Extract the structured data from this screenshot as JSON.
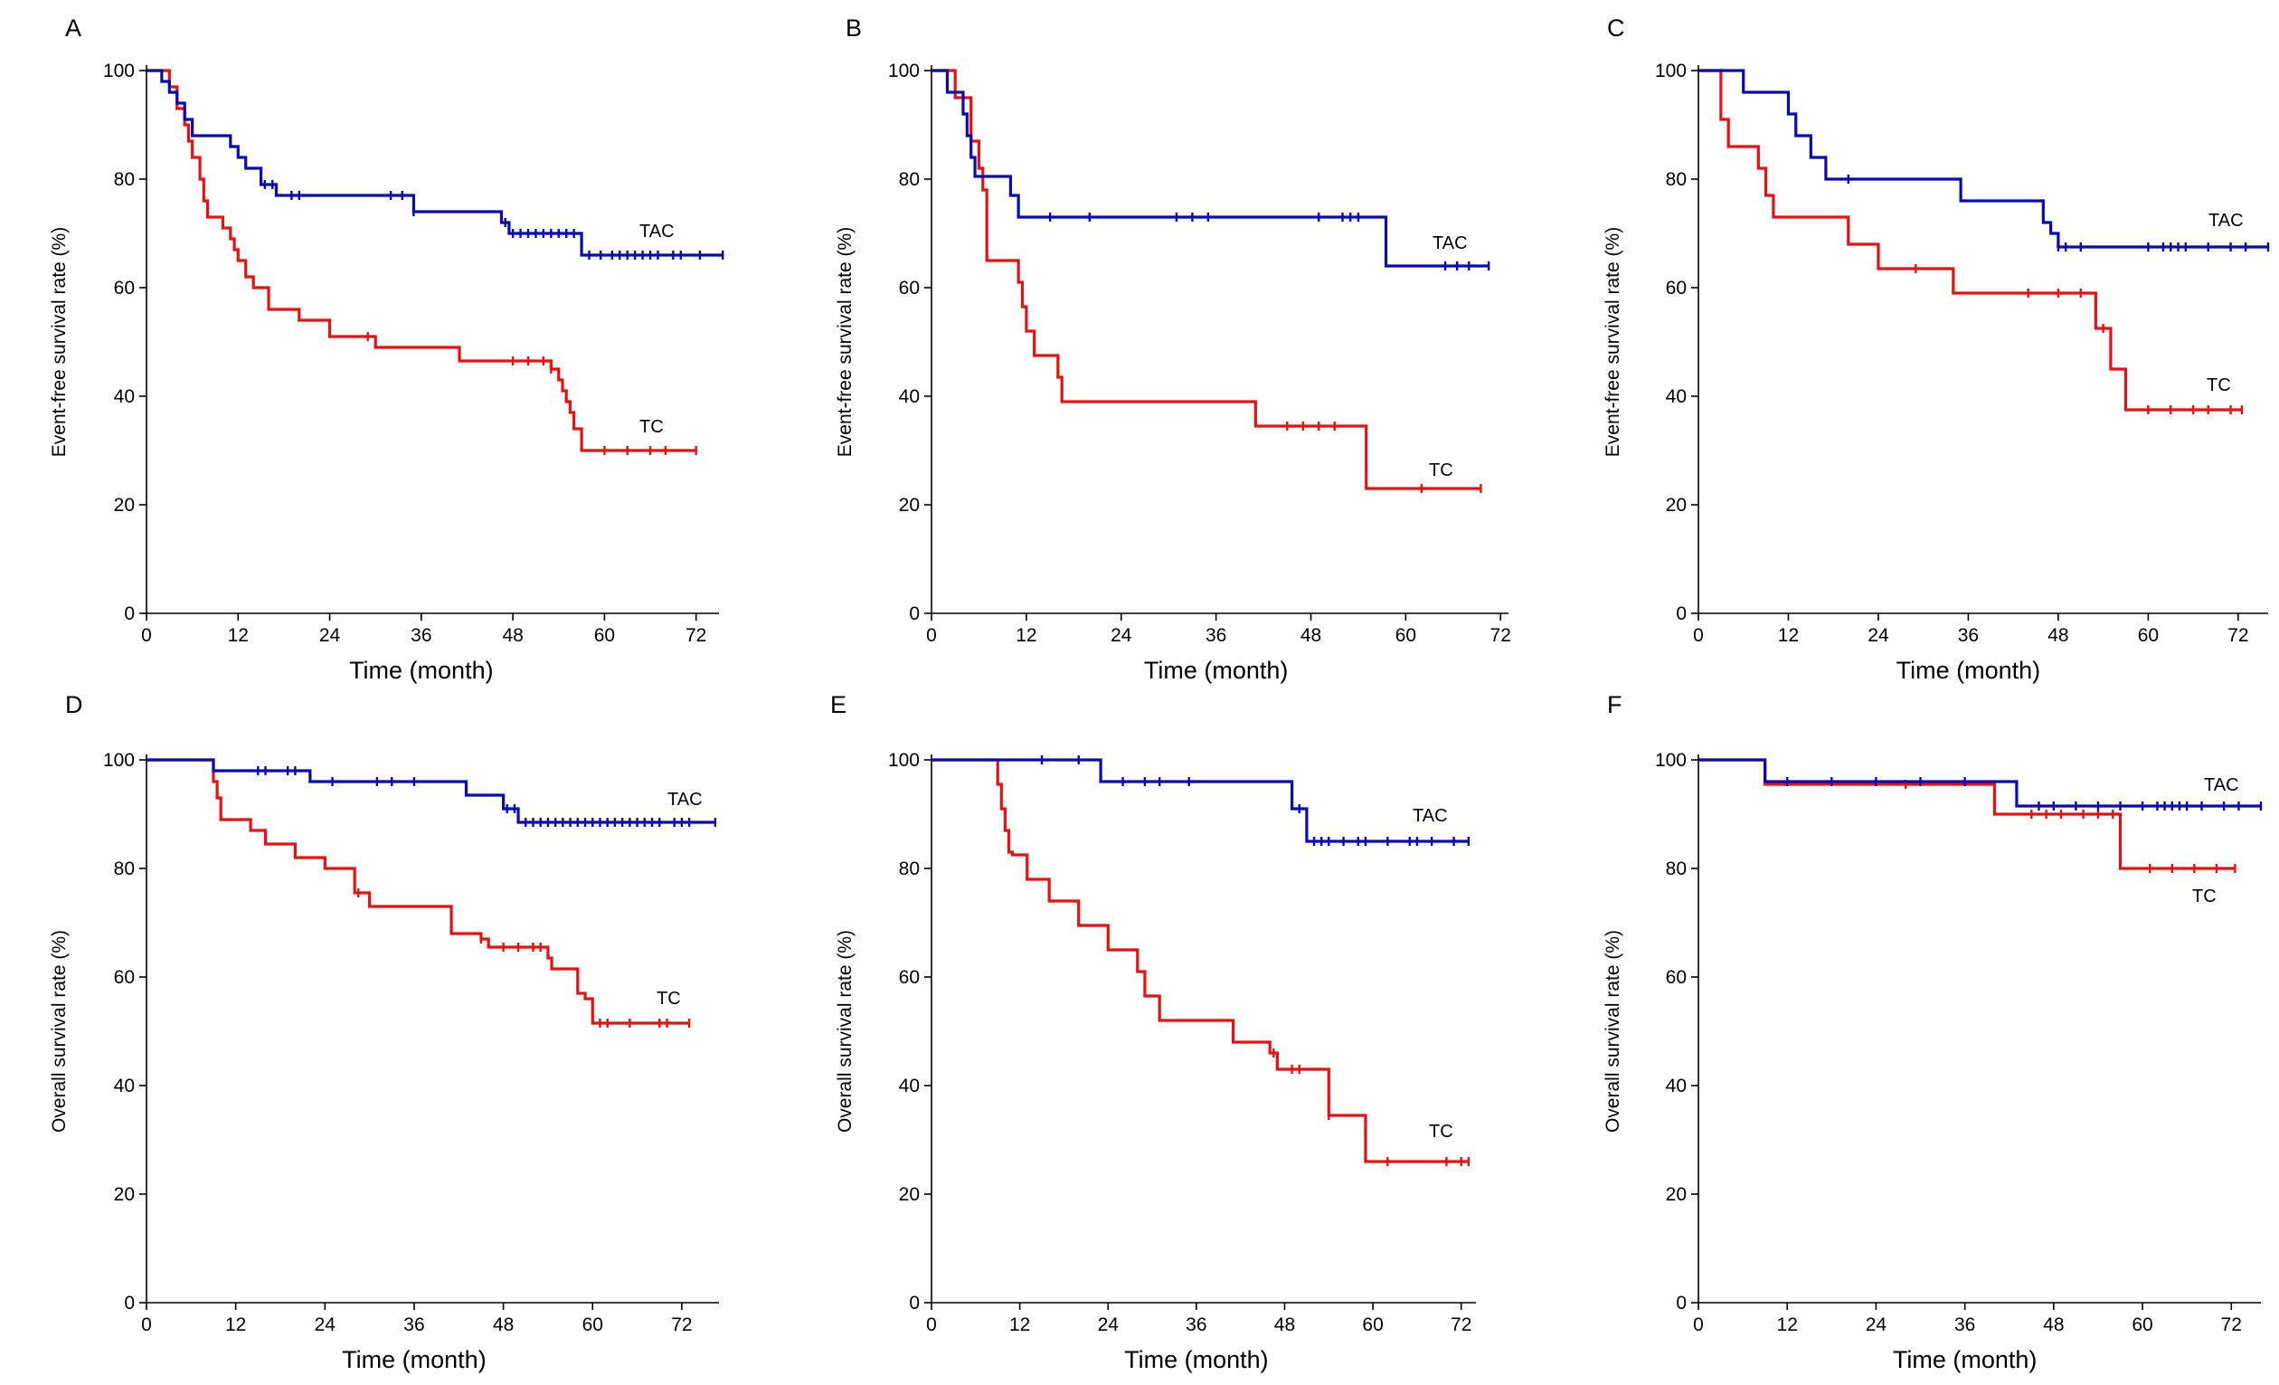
{
  "chart_data": [
    {
      "panel": "A",
      "type": "line",
      "ylabel": "Event-free survival rate (%)",
      "xlabel": "Time (month)",
      "xlim": [
        0,
        75
      ],
      "ylim": [
        0,
        100
      ],
      "xticks": [
        "0",
        "12",
        "24",
        "36",
        "48",
        "60",
        "72"
      ],
      "yticks": [
        "0",
        "20",
        "40",
        "60",
        "80",
        "100"
      ],
      "series": [
        {
          "name": "TAC",
          "color": "#0a0ab4",
          "x": [
            0,
            2,
            3,
            4,
            5,
            6,
            11,
            12,
            13,
            15,
            17,
            35,
            46.5,
            47.5,
            57,
            75.5
          ],
          "y": [
            100,
            98,
            96,
            94,
            91,
            88,
            86,
            84,
            82,
            79,
            77,
            74,
            72,
            70,
            66,
            66
          ],
          "censored_x": [
            15.5,
            16.5,
            19,
            20,
            32,
            33.5,
            35,
            47,
            48,
            49,
            50,
            51,
            52,
            53,
            54,
            55,
            56,
            58,
            59.5,
            61,
            62,
            63,
            64,
            65,
            66,
            67,
            69,
            70,
            72.5,
            75.5
          ]
        },
        {
          "name": "TC",
          "color": "#e81010",
          "x": [
            0,
            3,
            4,
            5,
            5.5,
            6,
            7,
            7.5,
            8,
            10,
            11,
            11.5,
            12,
            13,
            14,
            16,
            20,
            24,
            30,
            41,
            53,
            54,
            54.5,
            55,
            55.5,
            56,
            57,
            72
          ],
          "y": [
            100,
            97,
            93,
            90,
            87,
            84,
            80,
            76,
            73,
            71,
            69,
            67,
            65,
            62,
            60,
            56,
            54,
            51,
            49,
            46.5,
            45,
            43,
            41,
            39,
            37,
            34,
            30,
            30
          ],
          "censored_x": [
            29,
            48,
            50,
            52,
            53,
            60,
            63,
            66,
            68,
            72
          ]
        }
      ]
    },
    {
      "panel": "B",
      "type": "line",
      "ylabel": "Event-free survival rate (%)",
      "xlabel": "Time (month)",
      "xlim": [
        0,
        73
      ],
      "ylim": [
        0,
        100
      ],
      "xticks": [
        "0",
        "12",
        "24",
        "36",
        "48",
        "60",
        "72"
      ],
      "yticks": [
        "0",
        "20",
        "40",
        "60",
        "80",
        "100"
      ],
      "series": [
        {
          "name": "TAC",
          "color": "#0a0ab4",
          "x": [
            0,
            2,
            4,
            4.5,
            5,
            5.5,
            10,
            11,
            57.5,
            70.5
          ],
          "y": [
            100,
            96,
            92,
            88,
            84,
            80.5,
            77,
            73,
            64,
            64
          ],
          "censored_x": [
            15,
            20,
            31,
            33,
            35,
            49,
            52,
            53,
            54,
            65,
            66.5,
            68,
            70.5
          ]
        },
        {
          "name": "TC",
          "color": "#e81010",
          "x": [
            0,
            3,
            5,
            6,
            6.5,
            7,
            11,
            11.5,
            12,
            13,
            16,
            16.5,
            41,
            55,
            69.5
          ],
          "y": [
            100,
            95,
            87,
            82,
            78,
            65,
            61,
            56.5,
            52,
            47.5,
            43.5,
            39,
            34.5,
            23,
            23
          ],
          "censored_x": [
            45,
            47,
            49,
            51,
            62,
            69.5
          ]
        }
      ]
    },
    {
      "panel": "C",
      "type": "line",
      "ylabel": "Event-free survival rate (%)",
      "xlabel": "Time (month)",
      "xlim": [
        0,
        76
      ],
      "ylim": [
        0,
        100
      ],
      "xticks": [
        "0",
        "12",
        "24",
        "36",
        "48",
        "60",
        "72"
      ],
      "yticks": [
        "0",
        "20",
        "40",
        "60",
        "80",
        "100"
      ],
      "series": [
        {
          "name": "TAC",
          "color": "#0a0ab4",
          "x": [
            0,
            6,
            12,
            13,
            15,
            17,
            35,
            46,
            47,
            48,
            76
          ],
          "y": [
            100,
            96,
            92,
            88,
            84,
            80,
            76,
            72,
            70,
            67.5,
            67.5
          ],
          "censored_x": [
            20,
            48,
            49,
            51,
            60,
            62,
            63,
            64,
            65,
            68,
            71,
            73,
            76
          ]
        },
        {
          "name": "TC",
          "color": "#e81010",
          "x": [
            0,
            3,
            4,
            8,
            9,
            10,
            20,
            24,
            34,
            53,
            55,
            57,
            72.5
          ],
          "y": [
            100,
            91,
            86,
            82,
            77,
            73,
            68,
            63.5,
            59,
            52.5,
            45,
            37.5,
            37.5
          ],
          "censored_x": [
            29,
            44,
            48,
            51,
            54,
            60,
            63,
            66,
            68,
            71,
            72.5
          ]
        }
      ]
    },
    {
      "panel": "D",
      "type": "line",
      "ylabel": "Overall survival rate (%)",
      "xlabel": "Time (month)",
      "xlim": [
        0,
        77
      ],
      "ylim": [
        0,
        100
      ],
      "xticks": [
        "0",
        "12",
        "24",
        "36",
        "48",
        "60",
        "72"
      ],
      "yticks": [
        "0",
        "20",
        "40",
        "60",
        "80",
        "100"
      ],
      "series": [
        {
          "name": "TAC",
          "color": "#0a0ab4",
          "x": [
            0,
            9,
            22,
            43,
            48,
            50,
            51,
            76.5
          ],
          "y": [
            100,
            98,
            96,
            93.5,
            91,
            88.5,
            88.5,
            88.5
          ],
          "censored_x": [
            15,
            16,
            19,
            20,
            25,
            31,
            33,
            36,
            48.5,
            49.5,
            51,
            52,
            53,
            54,
            55,
            56,
            57,
            58,
            59,
            60,
            61,
            62,
            63,
            64,
            65,
            66,
            67,
            68,
            69,
            71,
            72,
            73,
            76.5
          ]
        },
        {
          "name": "TC",
          "color": "#e81010",
          "x": [
            0,
            9,
            9.5,
            10,
            14,
            16,
            20,
            24,
            28,
            30,
            41,
            45,
            46,
            54,
            54.5,
            58,
            59,
            60,
            73
          ],
          "y": [
            100,
            96,
            93,
            89,
            87,
            84.5,
            82,
            80,
            75.5,
            73,
            68,
            67,
            65.5,
            63.5,
            61.5,
            57,
            56,
            51.5,
            51.5
          ],
          "censored_x": [
            28.5,
            45,
            48,
            50,
            52,
            53,
            61,
            62,
            65,
            69,
            70,
            73
          ]
        }
      ]
    },
    {
      "panel": "E",
      "type": "line",
      "ylabel": "Overall survival rate (%)",
      "xlabel": "Time (month)",
      "xlim": [
        0,
        74
      ],
      "ylim": [
        0,
        100
      ],
      "xticks": [
        "0",
        "12",
        "24",
        "36",
        "48",
        "60",
        "72"
      ],
      "yticks": [
        "0",
        "20",
        "40",
        "60",
        "80",
        "100"
      ],
      "series": [
        {
          "name": "TAC",
          "color": "#0a0ab4",
          "x": [
            0,
            23,
            49,
            51,
            73
          ],
          "y": [
            100,
            96,
            91,
            85,
            85
          ],
          "censored_x": [
            15,
            20,
            26,
            29,
            31,
            35,
            50,
            52,
            53,
            54,
            56,
            58,
            59,
            62,
            65,
            66,
            68,
            71,
            73
          ]
        },
        {
          "name": "TC",
          "color": "#e81010",
          "x": [
            0,
            9,
            9.5,
            10,
            10.5,
            11,
            13,
            16,
            20,
            24,
            28,
            29,
            31,
            41,
            46,
            47,
            54,
            59,
            73
          ],
          "y": [
            100,
            95.5,
            91,
            87,
            83,
            82.5,
            78,
            74,
            69.5,
            65,
            61,
            56.5,
            52,
            48,
            46,
            43,
            34.5,
            26,
            26
          ],
          "censored_x": [
            46.5,
            49,
            50,
            54,
            62,
            70,
            72,
            73
          ]
        }
      ]
    },
    {
      "panel": "F",
      "type": "line",
      "ylabel": "Overall survival rate (%)",
      "xlabel": "Time (month)",
      "xlim": [
        0,
        76
      ],
      "ylim": [
        0,
        100
      ],
      "xticks": [
        "0",
        "12",
        "24",
        "36",
        "48",
        "60",
        "72"
      ],
      "yticks": [
        "0",
        "20",
        "40",
        "60",
        "80",
        "100"
      ],
      "series": [
        {
          "name": "TAC",
          "color": "#0a0ab4",
          "x": [
            0,
            9,
            43,
            76
          ],
          "y": [
            100,
            96,
            91.5,
            91.5
          ],
          "censored_x": [
            12,
            18,
            24,
            30,
            36,
            46,
            48,
            51,
            54,
            57,
            60,
            62,
            63,
            64,
            65,
            66,
            68,
            71,
            73,
            76
          ]
        },
        {
          "name": "TC",
          "color": "#e81010",
          "x": [
            0,
            9,
            40,
            57,
            72.5
          ],
          "y": [
            100,
            95.5,
            90,
            80,
            80
          ],
          "censored_x": [
            28,
            45,
            47,
            49,
            52,
            54,
            56,
            61,
            64,
            67,
            70,
            72.5
          ]
        }
      ]
    }
  ],
  "labels": {
    "tac": "TAC",
    "tc": "TC"
  }
}
